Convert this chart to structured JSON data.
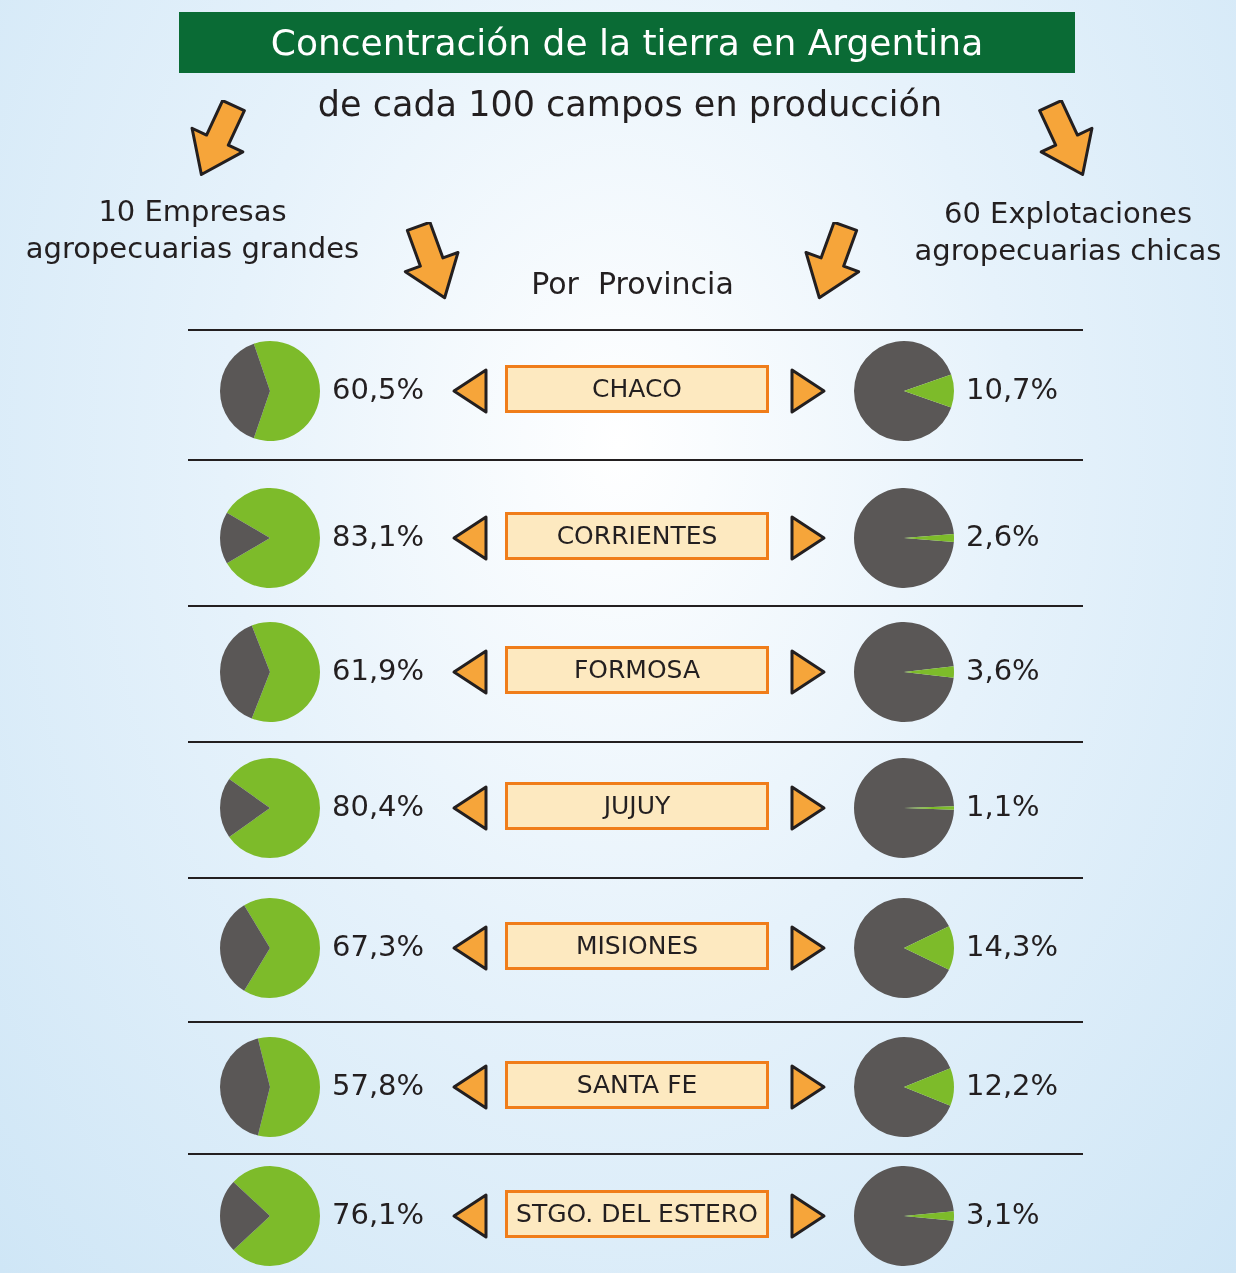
{
  "chart_data": [
    {
      "type": "other",
      "title": "Concentración de la tierra en Argentina",
      "subtitle": "de cada 100 campos en producción",
      "annotations": [
        "10 Empresas\nagropecuarias grandes",
        "60 Explotaciones\nagropecuarias chicas",
        "Por  Provincia"
      ]
    },
    {
      "type": "pie",
      "title": "CHACO",
      "categories": [
        null,
        null
      ],
      "values": [
        60.5,
        39.5
      ],
      "colors": [
        "#7dbb2a",
        "#5a5756"
      ],
      "value_labels": [
        "60,5%",
        null
      ]
    },
    {
      "type": "pie",
      "categories": [
        null,
        null
      ],
      "values": [
        89.3,
        10.7
      ],
      "colors": [
        "#5a5756",
        "#7dbb2a"
      ],
      "value_labels": [
        null,
        "10,7%"
      ]
    },
    {
      "type": "pie",
      "title": "CORRIENTES",
      "categories": [
        null,
        null
      ],
      "values": [
        83.1,
        16.9
      ],
      "colors": [
        "#7dbb2a",
        "#5a5756"
      ],
      "value_labels": [
        "83,1%",
        null
      ]
    },
    {
      "type": "pie",
      "categories": [
        null,
        null
      ],
      "values": [
        97.4,
        2.6
      ],
      "colors": [
        "#5a5756",
        "#7dbb2a"
      ],
      "value_labels": [
        null,
        "2,6%"
      ]
    },
    {
      "type": "pie",
      "title": "FORMOSA",
      "categories": [
        null,
        null
      ],
      "values": [
        61.9,
        38.1
      ],
      "colors": [
        "#7dbb2a",
        "#5a5756"
      ],
      "value_labels": [
        "61,9%",
        null
      ]
    },
    {
      "type": "pie",
      "categories": [
        null,
        null
      ],
      "values": [
        96.4,
        3.6
      ],
      "colors": [
        "#5a5756",
        "#7dbb2a"
      ],
      "value_labels": [
        null,
        "3,6%"
      ]
    },
    {
      "type": "pie",
      "title": "JUJUY",
      "categories": [
        null,
        null
      ],
      "values": [
        80.4,
        19.6
      ],
      "colors": [
        "#7dbb2a",
        "#5a5756"
      ],
      "value_labels": [
        "80,4%",
        null
      ]
    },
    {
      "type": "pie",
      "categories": [
        null,
        null
      ],
      "values": [
        98.9,
        1.1
      ],
      "colors": [
        "#5a5756",
        "#7dbb2a"
      ],
      "value_labels": [
        null,
        "1,1%"
      ]
    },
    {
      "type": "pie",
      "title": "MISIONES",
      "categories": [
        null,
        null
      ],
      "values": [
        67.3,
        32.7
      ],
      "colors": [
        "#7dbb2a",
        "#5a5756"
      ],
      "value_labels": [
        "67,3%",
        null
      ]
    },
    {
      "type": "pie",
      "categories": [
        null,
        null
      ],
      "values": [
        85.7,
        14.3
      ],
      "colors": [
        "#5a5756",
        "#7dbb2a"
      ],
      "value_labels": [
        null,
        "14,3%"
      ]
    },
    {
      "type": "pie",
      "title": "SANTA FE",
      "categories": [
        null,
        null
      ],
      "values": [
        57.8,
        42.2
      ],
      "colors": [
        "#7dbb2a",
        "#5a5756"
      ],
      "value_labels": [
        "57,8%",
        null
      ]
    },
    {
      "type": "pie",
      "categories": [
        null,
        null
      ],
      "values": [
        87.8,
        12.2
      ],
      "colors": [
        "#5a5756",
        "#7dbb2a"
      ],
      "value_labels": [
        null,
        "12,2%"
      ]
    },
    {
      "type": "pie",
      "title": "STGO. DEL ESTERO",
      "categories": [
        null,
        null
      ],
      "values": [
        76.1,
        23.9
      ],
      "colors": [
        "#7dbb2a",
        "#5a5756"
      ],
      "value_labels": [
        "76,1%",
        null
      ]
    },
    {
      "type": "pie",
      "categories": [
        null,
        null
      ],
      "values": [
        96.9,
        3.1
      ],
      "colors": [
        "#5a5756",
        "#7dbb2a"
      ],
      "value_labels": [
        null,
        "3,1%"
      ]
    }
  ]
}
